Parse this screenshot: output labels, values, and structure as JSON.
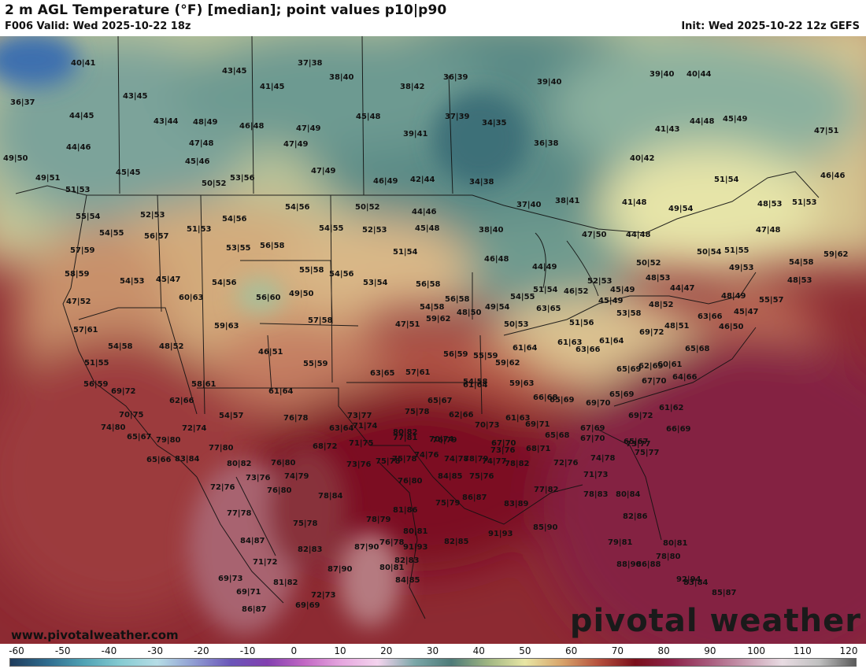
{
  "header": {
    "title": "2 m AGL Temperature (°F) [median]; point values p10|p90",
    "valid": "F006 Valid: Wed 2025-10-22 18z",
    "init": "Init: Wed 2025-10-22 12z GEFS"
  },
  "footer": {
    "site": "www.pivotalweather.com",
    "wordmark": "pivotal weather"
  },
  "colorbar": {
    "ticks": [
      "-60",
      "-50",
      "-40",
      "-30",
      "-20",
      "-10",
      "0",
      "10",
      "20",
      "30",
      "40",
      "50",
      "60",
      "70",
      "80",
      "90",
      "100",
      "110",
      "120"
    ],
    "colors": [
      "#1f3c5c",
      "#2f6b8e",
      "#4fa2b4",
      "#85cbd2",
      "#b6dde6",
      "#8f9cd2",
      "#6a55b8",
      "#8340b0",
      "#c267c4",
      "#e6a6df",
      "#f4d4ee",
      "#7ba7a8",
      "#4d7a78",
      "#a0b682",
      "#e8e6a4",
      "#d8a46a",
      "#b5503d",
      "#7a0f1b",
      "#8c2349",
      "#a85a7c",
      "#c99bb0",
      "#e8dbe2",
      "#c0c0c0",
      "#5a5a5a"
    ]
  },
  "point_values": [
    {
      "text": "40|41"
    },
    {
      "text": "43|45"
    },
    {
      "text": "37|38"
    },
    {
      "text": "36|39"
    },
    {
      "text": "39|40"
    },
    {
      "text": "39|40"
    },
    {
      "text": "40|44"
    },
    {
      "text": "38|40"
    },
    {
      "text": "41|45"
    },
    {
      "text": "38|42"
    },
    {
      "text": "36|37"
    },
    {
      "text": "43|45"
    },
    {
      "text": "45|48"
    },
    {
      "text": "37|39"
    },
    {
      "text": "34|35"
    },
    {
      "text": "44|45"
    },
    {
      "text": "43|44"
    },
    {
      "text": "48|49"
    },
    {
      "text": "46|48"
    },
    {
      "text": "47|49"
    },
    {
      "text": "39|41"
    },
    {
      "text": "41|43"
    },
    {
      "text": "44|48"
    },
    {
      "text": "45|49"
    },
    {
      "text": "47|51"
    },
    {
      "text": "44|46"
    },
    {
      "text": "47|48"
    },
    {
      "text": "47|49"
    },
    {
      "text": "36|38"
    },
    {
      "text": "49|50"
    },
    {
      "text": "45|46"
    },
    {
      "text": "40|42"
    },
    {
      "text": "45|45"
    },
    {
      "text": "47|49"
    },
    {
      "text": "49|51"
    },
    {
      "text": "53|56"
    },
    {
      "text": "50|52"
    },
    {
      "text": "46|49"
    },
    {
      "text": "42|44"
    },
    {
      "text": "34|38"
    },
    {
      "text": "51|54"
    },
    {
      "text": "46|46"
    },
    {
      "text": "51|53"
    },
    {
      "text": "37|40"
    },
    {
      "text": "38|41"
    },
    {
      "text": "41|48"
    },
    {
      "text": "49|54"
    },
    {
      "text": "48|53"
    },
    {
      "text": "51|53"
    },
    {
      "text": "54|56"
    },
    {
      "text": "50|52"
    },
    {
      "text": "55|54"
    },
    {
      "text": "52|53"
    },
    {
      "text": "54|56"
    },
    {
      "text": "44|46"
    },
    {
      "text": "47|48"
    },
    {
      "text": "51|53"
    },
    {
      "text": "54|55"
    },
    {
      "text": "52|53"
    },
    {
      "text": "45|48"
    },
    {
      "text": "38|40"
    },
    {
      "text": "54|55"
    },
    {
      "text": "56|57"
    },
    {
      "text": "47|50"
    },
    {
      "text": "44|48"
    },
    {
      "text": "53|55"
    },
    {
      "text": "56|58"
    },
    {
      "text": "51|54"
    },
    {
      "text": "57|59"
    },
    {
      "text": "50|54"
    },
    {
      "text": "51|55"
    },
    {
      "text": "54|58"
    },
    {
      "text": "59|62"
    },
    {
      "text": "55|58"
    },
    {
      "text": "46|48"
    },
    {
      "text": "50|52"
    },
    {
      "text": "58|59"
    },
    {
      "text": "54|56"
    },
    {
      "text": "44|49"
    },
    {
      "text": "49|53"
    },
    {
      "text": "54|53"
    },
    {
      "text": "45|47"
    },
    {
      "text": "52|53"
    },
    {
      "text": "54|56"
    },
    {
      "text": "53|54"
    },
    {
      "text": "56|58"
    },
    {
      "text": "51|54"
    },
    {
      "text": "46|52"
    },
    {
      "text": "48|53"
    },
    {
      "text": "56|60"
    },
    {
      "text": "49|50"
    },
    {
      "text": "54|55"
    },
    {
      "text": "45|49"
    },
    {
      "text": "48|53"
    },
    {
      "text": "44|47"
    },
    {
      "text": "47|52"
    },
    {
      "text": "60|63"
    },
    {
      "text": "56|58"
    },
    {
      "text": "54|58"
    },
    {
      "text": "49|54"
    },
    {
      "text": "45|49"
    },
    {
      "text": "48|52"
    },
    {
      "text": "48|49"
    },
    {
      "text": "55|57"
    },
    {
      "text": "63|65"
    },
    {
      "text": "48|50"
    },
    {
      "text": "53|58"
    },
    {
      "text": "45|47"
    },
    {
      "text": "59|63"
    },
    {
      "text": "57|58"
    },
    {
      "text": "59|62"
    },
    {
      "text": "57|61"
    },
    {
      "text": "47|51"
    },
    {
      "text": "50|53"
    },
    {
      "text": "69|72"
    },
    {
      "text": "63|66"
    },
    {
      "text": "51|56"
    },
    {
      "text": "48|51"
    },
    {
      "text": "46|50"
    },
    {
      "text": "61|64"
    },
    {
      "text": "61|63"
    },
    {
      "text": "61|64"
    },
    {
      "text": "54|58"
    },
    {
      "text": "48|52"
    },
    {
      "text": "46|51"
    },
    {
      "text": "56|59"
    },
    {
      "text": "55|59"
    },
    {
      "text": "60|61"
    },
    {
      "text": "65|68"
    },
    {
      "text": "51|55"
    },
    {
      "text": "59|62"
    },
    {
      "text": "63|66"
    },
    {
      "text": "65|69"
    },
    {
      "text": "61|64"
    },
    {
      "text": "59|63"
    },
    {
      "text": "56|59"
    },
    {
      "text": "55|59"
    },
    {
      "text": "62|69"
    },
    {
      "text": "64|66"
    },
    {
      "text": "63|65"
    },
    {
      "text": "57|61"
    },
    {
      "text": "54|58"
    },
    {
      "text": "66|68"
    },
    {
      "text": "67|70"
    },
    {
      "text": "69|72"
    },
    {
      "text": "58|61"
    },
    {
      "text": "61|64"
    },
    {
      "text": "65|69"
    },
    {
      "text": "62|66"
    },
    {
      "text": "65|67"
    },
    {
      "text": "65|69"
    },
    {
      "text": "69|70"
    },
    {
      "text": "61|62"
    },
    {
      "text": "54|57"
    },
    {
      "text": "73|77"
    },
    {
      "text": "75|78"
    },
    {
      "text": "62|66"
    },
    {
      "text": "61|63"
    },
    {
      "text": "69|72"
    },
    {
      "text": "66|69"
    },
    {
      "text": "70|75"
    },
    {
      "text": "76|78"
    },
    {
      "text": "71|74"
    },
    {
      "text": "70|73"
    },
    {
      "text": "69|71"
    },
    {
      "text": "67|69"
    },
    {
      "text": "65|67"
    },
    {
      "text": "74|80"
    },
    {
      "text": "72|74"
    },
    {
      "text": "63|64"
    },
    {
      "text": "80|82"
    },
    {
      "text": "70|74"
    },
    {
      "text": "65|68"
    },
    {
      "text": "67|70"
    },
    {
      "text": "73|77"
    },
    {
      "text": "65|67"
    },
    {
      "text": "79|80"
    },
    {
      "text": "77|81"
    },
    {
      "text": "76|79"
    },
    {
      "text": "67|70"
    },
    {
      "text": "68|71"
    },
    {
      "text": "77|80"
    },
    {
      "text": "68|72"
    },
    {
      "text": "71|75"
    },
    {
      "text": "73|76"
    },
    {
      "text": "75|77"
    },
    {
      "text": "65|66"
    },
    {
      "text": "83|84"
    },
    {
      "text": "75|78"
    },
    {
      "text": "74|77"
    },
    {
      "text": "72|76"
    },
    {
      "text": "74|78"
    },
    {
      "text": "80|82"
    },
    {
      "text": "76|80"
    },
    {
      "text": "73|76"
    },
    {
      "text": "75|78"
    },
    {
      "text": "74|76"
    },
    {
      "text": "74|78"
    },
    {
      "text": "78|79"
    },
    {
      "text": "78|82"
    },
    {
      "text": "74|79"
    },
    {
      "text": "73|76"
    },
    {
      "text": "76|80"
    },
    {
      "text": "84|85"
    },
    {
      "text": "75|76"
    },
    {
      "text": "71|73"
    },
    {
      "text": "72|76"
    },
    {
      "text": "76|80"
    },
    {
      "text": "78|84"
    },
    {
      "text": "77|82"
    },
    {
      "text": "78|83"
    },
    {
      "text": "75|79"
    },
    {
      "text": "86|87"
    },
    {
      "text": "80|84"
    },
    {
      "text": "83|89"
    },
    {
      "text": "77|78"
    },
    {
      "text": "81|86"
    },
    {
      "text": "82|86"
    },
    {
      "text": "75|78"
    },
    {
      "text": "78|79"
    },
    {
      "text": "80|81"
    },
    {
      "text": "91|93"
    },
    {
      "text": "85|90"
    },
    {
      "text": "82|85"
    },
    {
      "text": "84|87"
    },
    {
      "text": "76|78"
    },
    {
      "text": "79|81"
    },
    {
      "text": "80|81"
    },
    {
      "text": "82|83"
    },
    {
      "text": "87|90"
    },
    {
      "text": "91|93"
    },
    {
      "text": "78|80"
    },
    {
      "text": "71|72"
    },
    {
      "text": "82|83"
    },
    {
      "text": "86|88"
    },
    {
      "text": "92|94"
    },
    {
      "text": "87|90"
    },
    {
      "text": "80|81"
    },
    {
      "text": "88|90"
    },
    {
      "text": "69|73"
    },
    {
      "text": "81|82"
    },
    {
      "text": "84|85"
    },
    {
      "text": "83|84"
    },
    {
      "text": "69|71"
    },
    {
      "text": "72|73"
    },
    {
      "text": "85|87"
    },
    {
      "text": "86|87"
    },
    {
      "text": "69|69"
    }
  ]
}
